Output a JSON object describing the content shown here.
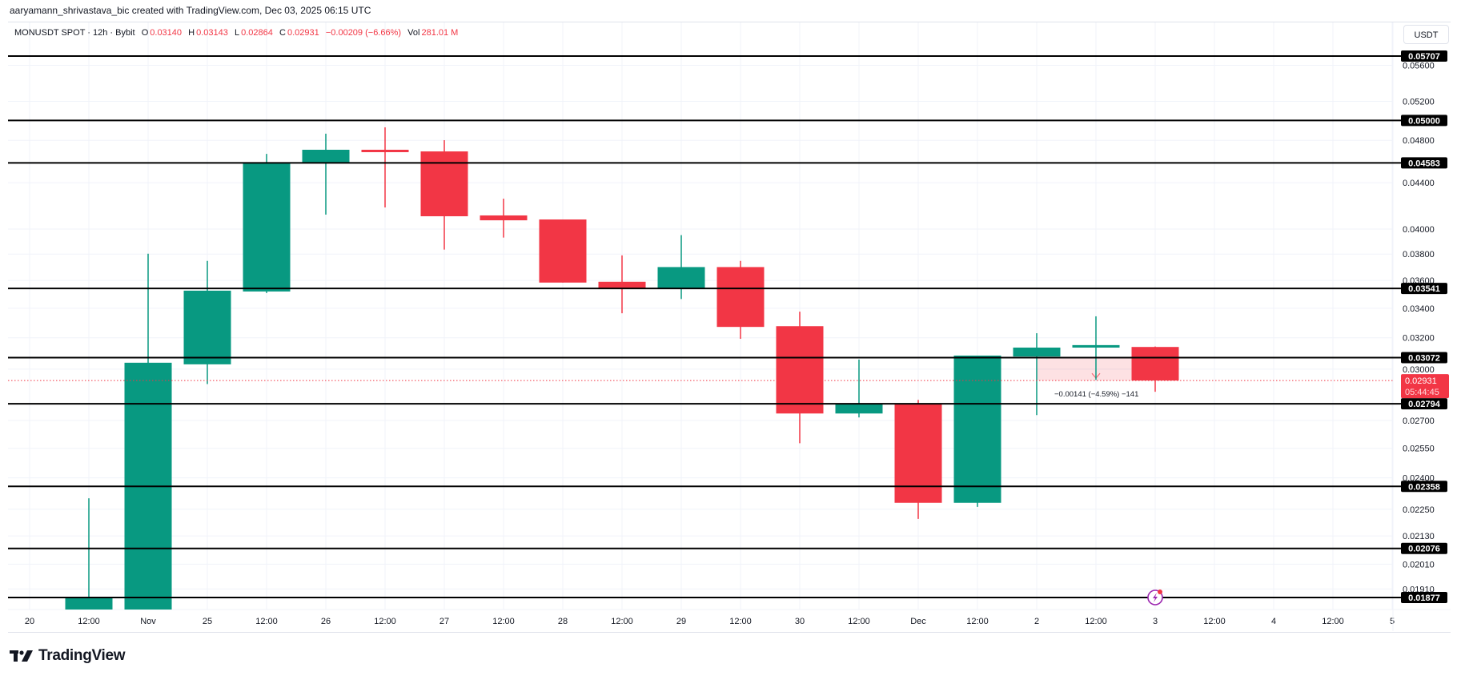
{
  "credit": "aaryamann_shrivastava_bic created with TradingView.com, Dec 03, 2025 06:15 UTC",
  "legend": {
    "symbol": "MONUSDT SPOT · 12h · Bybit",
    "o_label": "O",
    "o": "0.03140",
    "h_label": "H",
    "h": "0.03143",
    "l_label": "L",
    "l": "0.02864",
    "c_label": "C",
    "c": "0.02931",
    "change": "−0.00209 (−6.66%)",
    "vol_label": "Vol",
    "vol": "281.01 M"
  },
  "currency_button": "USDT",
  "logo_text": "TradingView",
  "colors": {
    "up": "#089981",
    "down": "#f23645",
    "level_line": "#000000",
    "grid": "#f0f3fa",
    "alert_icon": "#9c27b0"
  },
  "chart_data": {
    "type": "candlestick",
    "title": "MONUSDT SPOT · 12h · Bybit",
    "scale": "log",
    "ylim": [
      0.0183,
      0.0585
    ],
    "x_tick_labels": [
      "20",
      "12:00",
      "Nov",
      "25",
      "12:00",
      "26",
      "12:00",
      "27",
      "12:00",
      "28",
      "12:00",
      "29",
      "12:00",
      "30",
      "12:00",
      "Dec",
      "12:00",
      "2",
      "12:00",
      "3",
      "12:00",
      "4",
      "12:00",
      "5"
    ],
    "y_tick_labels": [
      "0.05600",
      "0.05200",
      "0.04800",
      "0.04400",
      "0.04000",
      "0.03800",
      "0.03600",
      "0.03400",
      "0.03200",
      "0.03000",
      "0.02700",
      "0.02550",
      "0.02400",
      "0.02250",
      "0.02130",
      "0.02010",
      "0.01910"
    ],
    "y_ticks": [
      0.056,
      0.052,
      0.048,
      0.044,
      0.04,
      0.038,
      0.036,
      0.034,
      0.032,
      0.03,
      0.027,
      0.0255,
      0.024,
      0.0225,
      0.0213,
      0.0201,
      0.0191
    ],
    "candles": [
      {
        "slot": 1,
        "label": "Nov 20 12:00",
        "o": 0.01831,
        "h": 0.02301,
        "l": 0.01831,
        "c": 0.01877
      },
      {
        "slot": 2,
        "label": "Nov 25 00:00",
        "o": 0.01831,
        "h": 0.03803,
        "l": 0.01831,
        "c": 0.0304
      },
      {
        "slot": 3,
        "label": "Nov 25 12:00",
        "o": 0.0303,
        "h": 0.03747,
        "l": 0.0291,
        "c": 0.03525
      },
      {
        "slot": 4,
        "label": "Nov 26 00:00",
        "o": 0.03519,
        "h": 0.04668,
        "l": 0.03508,
        "c": 0.04584
      },
      {
        "slot": 5,
        "label": "Nov 26 12:00",
        "o": 0.04584,
        "h": 0.04866,
        "l": 0.04121,
        "c": 0.04708
      },
      {
        "slot": 6,
        "label": "Nov 27 00:00",
        "o": 0.04708,
        "h": 0.0493,
        "l": 0.04182,
        "c": 0.04685
      },
      {
        "slot": 7,
        "label": "Nov 27 12:00",
        "o": 0.04692,
        "h": 0.04802,
        "l": 0.03835,
        "c": 0.04107
      },
      {
        "slot": 8,
        "label": "Nov 28 00:00",
        "o": 0.04114,
        "h": 0.04258,
        "l": 0.03931,
        "c": 0.04073
      },
      {
        "slot": 9,
        "label": "Nov 28 12:00",
        "o": 0.0408,
        "h": 0.0408,
        "l": 0.03584,
        "c": 0.03584
      },
      {
        "slot": 10,
        "label": "Nov 29 00:00",
        "o": 0.0359,
        "h": 0.0379,
        "l": 0.03365,
        "c": 0.03537
      },
      {
        "slot": 11,
        "label": "Nov 29 12:00",
        "o": 0.03537,
        "h": 0.03951,
        "l": 0.03465,
        "c": 0.037
      },
      {
        "slot": 12,
        "label": "Nov 30 00:00",
        "o": 0.037,
        "h": 0.03747,
        "l": 0.03193,
        "c": 0.03272
      },
      {
        "slot": 13,
        "label": "Nov 30 12:00",
        "o": 0.03277,
        "h": 0.03376,
        "l": 0.02577,
        "c": 0.02739
      },
      {
        "slot": 14,
        "label": "Dec 1 00:00",
        "o": 0.02739,
        "h": 0.0306,
        "l": 0.02717,
        "c": 0.02794
      },
      {
        "slot": 15,
        "label": "Dec 1 12:00",
        "o": 0.02794,
        "h": 0.02817,
        "l": 0.02206,
        "c": 0.0228
      },
      {
        "slot": 16,
        "label": "Dec 2 00:00",
        "o": 0.0228,
        "h": 0.03085,
        "l": 0.02261,
        "c": 0.03085
      },
      {
        "slot": 17,
        "label": "Dec 2 12:00",
        "o": 0.03079,
        "h": 0.0323,
        "l": 0.0273,
        "c": 0.03136
      },
      {
        "slot": 18,
        "label": "Dec 3 00:00",
        "o": 0.03136,
        "h": 0.03344,
        "l": 0.02935,
        "c": 0.03152
      },
      {
        "slot": 19,
        "label": "Dec 3 12:00",
        "o": 0.0314,
        "h": 0.03143,
        "l": 0.02864,
        "c": 0.02931
      }
    ],
    "horizontal_levels": [
      0.05707,
      0.05,
      0.04583,
      0.03541,
      0.03072,
      0.02794,
      0.02358,
      0.02076,
      0.01877
    ],
    "level_labels": [
      "0.05707",
      "0.05000",
      "0.04583",
      "0.03541",
      "0.03072",
      "0.02794",
      "0.02358",
      "0.02076",
      "0.01877"
    ],
    "last_price": {
      "value": 0.02931,
      "label": "0.02931",
      "countdown": "05:44:45"
    },
    "measure": {
      "from_slot": 17,
      "to_slot": 18.65,
      "from_price": 0.03072,
      "to_price": 0.02931,
      "label": "−0.00141 (−4.59%) −141"
    },
    "alert_icon_slot": 19
  }
}
